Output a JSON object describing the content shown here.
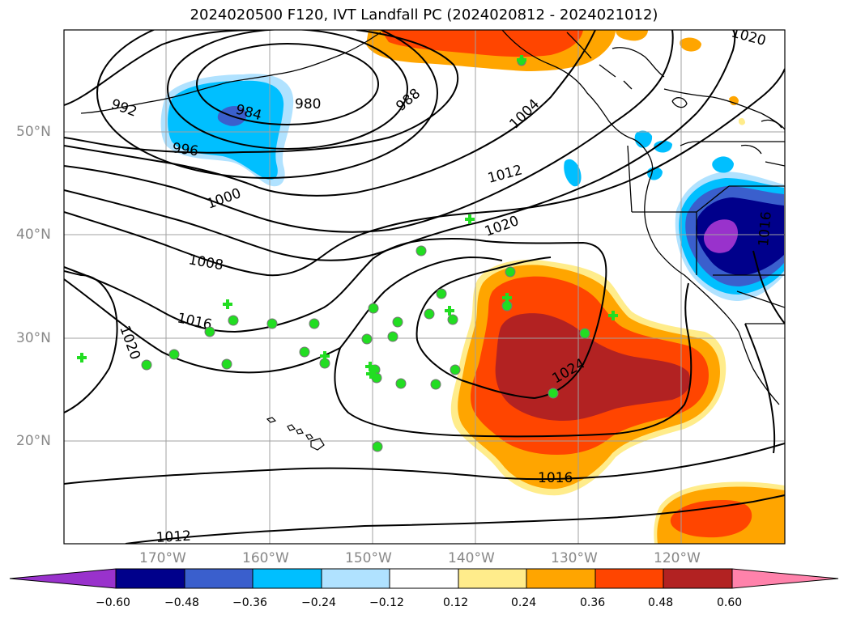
{
  "title": "2024020500 F120, IVT Landfall PC (2024020812 - 2024021012)",
  "lat_labels": [
    "50°N",
    "40°N",
    "30°N",
    "20°N"
  ],
  "lon_labels": [
    "170°W",
    "160°W",
    "150°W",
    "140°W",
    "130°W",
    "120°W"
  ],
  "contour_labels": [
    "992",
    "984",
    "980",
    "988",
    "1004",
    "996",
    "1012",
    "1000",
    "1020",
    "1008",
    "1016",
    "1020",
    "1024",
    "1016",
    "1012",
    "1020",
    "1016"
  ],
  "colorbar": {
    "ticks": [
      "−0.60",
      "−0.48",
      "−0.36",
      "−0.24",
      "−0.12",
      "0.12",
      "0.24",
      "0.36",
      "0.48",
      "0.60"
    ],
    "colors": [
      "#9932cc",
      "#00008b",
      "#3a5fcd",
      "#00bfff",
      "#b0e2ff",
      "#ffffff",
      "#ffec8b",
      "#ffa500",
      "#ff4500",
      "#b22222",
      "#ff82ab"
    ]
  },
  "fill_colors": {
    "neg1": "#b0e2ff",
    "neg2": "#00bfff",
    "neg3": "#3a5fcd",
    "neg4": "#00008b",
    "neg5": "#9932cc",
    "pos1": "#ffec8b",
    "pos2": "#ffa500",
    "pos3": "#ff4500",
    "pos4": "#b22222"
  },
  "marker_color": "#22dd22"
}
